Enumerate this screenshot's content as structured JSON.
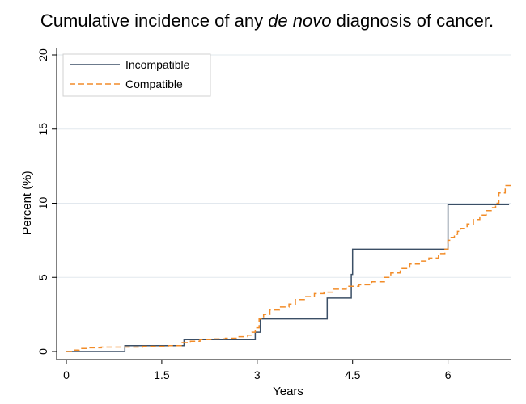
{
  "chart_data": {
    "type": "line",
    "title_parts": [
      "Cumulative incidence of any ",
      "de novo",
      " diagnosis of cancer."
    ],
    "xlabel": "Years",
    "ylabel": "Percent (%)",
    "xlim": [
      0,
      7
    ],
    "ylim": [
      0,
      20
    ],
    "xticks": [
      0,
      1.5,
      3,
      4.5,
      6
    ],
    "xtick_labels": [
      "0",
      "1.5",
      "3",
      "4.5",
      "6"
    ],
    "yticks": [
      0,
      5,
      10,
      15,
      20
    ],
    "ytick_labels": [
      "0",
      "5",
      "10",
      "15",
      "20"
    ],
    "grid": "horizontal",
    "legend_position": "top-left",
    "step": true,
    "series": [
      {
        "name": "Incompatible",
        "color": "#3b4f66",
        "style": "solid",
        "x": [
          0,
          0.92,
          1.85,
          2.97,
          3.05,
          4.1,
          4.48,
          4.5,
          6.0,
          6.96
        ],
        "y": [
          0,
          0.4,
          0.8,
          1.3,
          2.2,
          3.6,
          5.2,
          6.9,
          9.9,
          9.9
        ]
      },
      {
        "name": "Compatible",
        "color": "#f28c28",
        "style": "dashed",
        "x": [
          0,
          0.1,
          0.2,
          0.35,
          0.55,
          0.8,
          1.2,
          1.6,
          1.82,
          1.95,
          2.1,
          2.3,
          2.5,
          2.7,
          2.85,
          2.92,
          2.97,
          3.03,
          3.1,
          3.2,
          3.35,
          3.5,
          3.6,
          3.75,
          3.9,
          4.05,
          4.2,
          4.4,
          4.6,
          4.8,
          5.0,
          5.1,
          5.25,
          5.4,
          5.55,
          5.7,
          5.85,
          5.95,
          6.0,
          6.05,
          6.1,
          6.15,
          6.2,
          6.3,
          6.4,
          6.5,
          6.6,
          6.7,
          6.75,
          6.8,
          6.9,
          7.0
        ],
        "y": [
          0,
          0.1,
          0.2,
          0.25,
          0.3,
          0.3,
          0.35,
          0.4,
          0.6,
          0.7,
          0.8,
          0.85,
          0.9,
          1.0,
          1.1,
          1.3,
          1.6,
          2.2,
          2.5,
          2.8,
          3.0,
          3.2,
          3.5,
          3.7,
          3.9,
          4.0,
          4.2,
          4.4,
          4.5,
          4.7,
          5.0,
          5.3,
          5.6,
          5.9,
          6.1,
          6.3,
          6.6,
          6.9,
          7.5,
          7.7,
          7.9,
          8.1,
          8.3,
          8.6,
          8.9,
          9.2,
          9.5,
          9.7,
          10.0,
          10.7,
          11.2,
          11.3
        ]
      }
    ]
  }
}
